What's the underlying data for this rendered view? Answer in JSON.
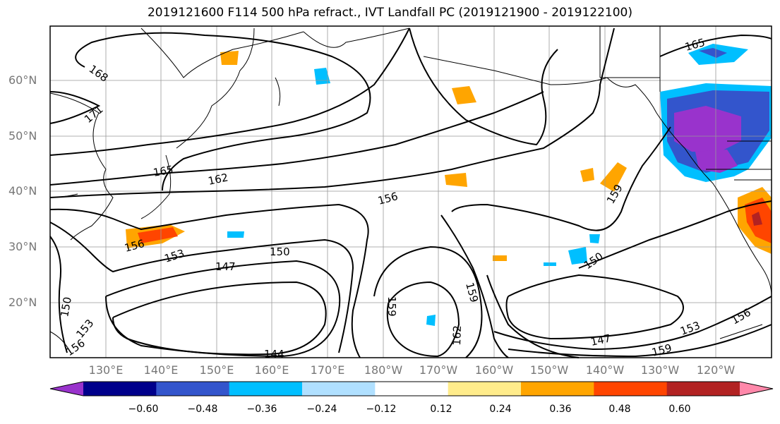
{
  "title": "2019121600 F114 500 hPa refract., IVT Landfall PC (2019121900 - 2019122100)",
  "map": {
    "lat_labels": [
      "60°N",
      "50°N",
      "40°N",
      "30°N",
      "20°N"
    ],
    "lon_labels": [
      "130°E",
      "140°E",
      "150°E",
      "160°E",
      "170°E",
      "180°W",
      "170°W",
      "160°W",
      "150°W",
      "140°W",
      "130°W",
      "120°W"
    ],
    "contour_labels": [
      "168",
      "171",
      "165",
      "162",
      "156",
      "159",
      "156",
      "153",
      "150",
      "147",
      "144",
      "150",
      "153",
      "159",
      "162",
      "159",
      "156",
      "150",
      "147",
      "153",
      "156",
      "159",
      "165"
    ]
  },
  "colorbar": {
    "colors": [
      "#9933cc",
      "#00008b",
      "#3355cc",
      "#00bfff",
      "#b0e0ff",
      "#ffffff",
      "#ffec8b",
      "#ffa500",
      "#ff4500",
      "#b22222",
      "#ff88aa"
    ],
    "ticks": [
      "−0.60",
      "−0.48",
      "−0.36",
      "−0.24",
      "−0.12",
      "0.12",
      "0.24",
      "0.36",
      "0.48",
      "0.60"
    ]
  }
}
